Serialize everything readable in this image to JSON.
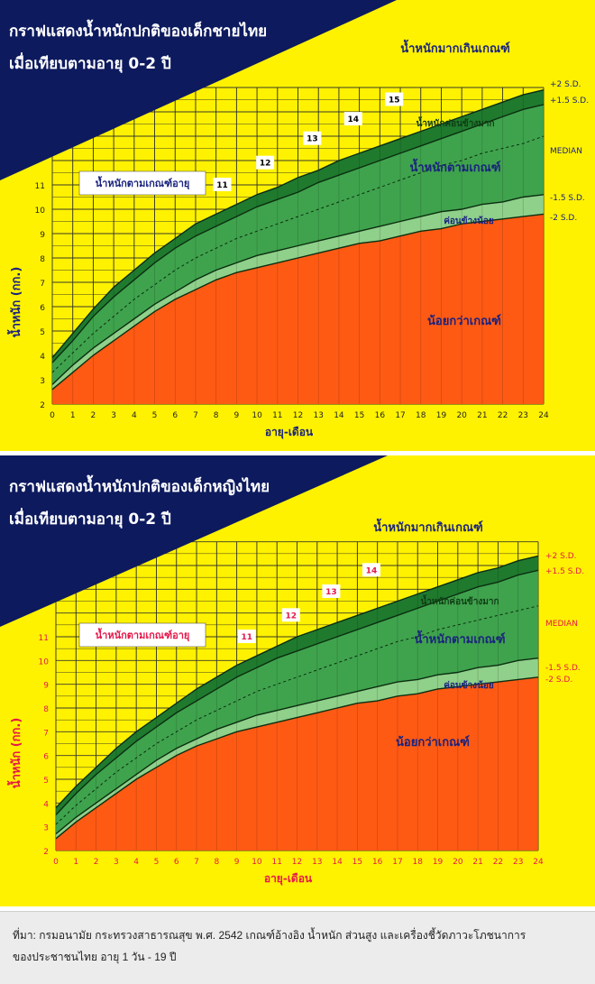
{
  "charts": [
    {
      "title_line1": "กราฟแสดงน้ำหนักปกติของเด็กชายไทย",
      "title_line2": "เมื่อเทียบตามอายุ 0-2 ปี",
      "colors": {
        "yellow": "#fff200",
        "navy": "#0d1a5e",
        "dark_green": "#1f7a2e",
        "green": "#3fa34d",
        "light_green": "#8fd08a",
        "orange": "#ff5a14",
        "tick_label": "#222222",
        "axis_title": "#1a237e",
        "marker_text": "#000000",
        "ref_label": "#1a237e"
      },
      "chart_data": {
        "type": "area",
        "xlabel": "อายุ-เดือน",
        "ylabel": "น้ำหนัก (กก.)",
        "xlim": [
          0,
          24
        ],
        "ylim": [
          2,
          15
        ],
        "grid": true,
        "x_ticks": [
          0,
          1,
          2,
          3,
          4,
          5,
          6,
          7,
          8,
          9,
          10,
          11,
          12,
          13,
          14,
          15,
          16,
          17,
          18,
          19,
          20,
          21,
          22,
          23,
          24
        ],
        "y_ticks": [
          2,
          3,
          4,
          5,
          6,
          7,
          8,
          9,
          10,
          11
        ],
        "x": [
          0,
          1,
          2,
          3,
          4,
          5,
          6,
          7,
          8,
          9,
          10,
          11,
          12,
          13,
          14,
          15,
          16,
          17,
          18,
          19,
          20,
          21,
          22,
          23,
          24
        ],
        "series": [
          {
            "name": "+2 S.D.",
            "values": [
              3.9,
              4.9,
              5.9,
              6.8,
              7.5,
              8.2,
              8.8,
              9.4,
              9.8,
              10.2,
              10.6,
              10.9,
              11.3,
              11.6,
              12.0,
              12.3,
              12.6,
              12.9,
              13.2,
              13.5,
              13.8,
              14.1,
              14.4,
              14.7,
              14.9
            ]
          },
          {
            "name": "+1.5 S.D.",
            "values": [
              3.7,
              4.6,
              5.6,
              6.4,
              7.1,
              7.8,
              8.4,
              8.9,
              9.3,
              9.7,
              10.1,
              10.4,
              10.7,
              11.1,
              11.4,
              11.7,
              12.0,
              12.3,
              12.6,
              12.9,
              13.2,
              13.5,
              13.8,
              14.1,
              14.3
            ]
          },
          {
            "name": "MEDIAN",
            "values": [
              3.3,
              4.1,
              4.9,
              5.6,
              6.3,
              6.9,
              7.5,
              8.0,
              8.4,
              8.8,
              9.1,
              9.4,
              9.7,
              10.0,
              10.3,
              10.6,
              10.9,
              11.2,
              11.5,
              11.8,
              12.0,
              12.3,
              12.5,
              12.7,
              13.0
            ]
          },
          {
            "name": "-1.5 S.D.",
            "values": [
              2.8,
              3.6,
              4.3,
              4.9,
              5.5,
              6.1,
              6.6,
              7.1,
              7.5,
              7.8,
              8.1,
              8.3,
              8.5,
              8.7,
              8.9,
              9.1,
              9.3,
              9.5,
              9.7,
              9.9,
              10.0,
              10.2,
              10.3,
              10.5,
              10.6
            ]
          },
          {
            "name": "-2 S.D.",
            "values": [
              2.6,
              3.3,
              4.0,
              4.6,
              5.2,
              5.8,
              6.3,
              6.7,
              7.1,
              7.4,
              7.6,
              7.8,
              8.0,
              8.2,
              8.4,
              8.6,
              8.7,
              8.9,
              9.1,
              9.2,
              9.4,
              9.5,
              9.6,
              9.7,
              9.8
            ]
          }
        ],
        "zones": [
          "น้ำหนักมากเกินเกณฑ์",
          "น้ำหนักค่อนข้างมาก",
          "น้ำหนักตามเกณฑ์",
          "ค่อนข้างน้อย",
          "น้อยกว่าเกณฑ์"
        ],
        "box_label": "น้ำหนักตามเกณฑ์อายุ",
        "weight_markers": [
          {
            "label": "11",
            "x": 8.3,
            "y": 11.0
          },
          {
            "label": "12",
            "x": 10.4,
            "y": 11.9
          },
          {
            "label": "13",
            "x": 12.7,
            "y": 12.9
          },
          {
            "label": "14",
            "x": 14.7,
            "y": 13.7
          },
          {
            "label": "15",
            "x": 16.7,
            "y": 14.5
          }
        ]
      }
    },
    {
      "title_line1": "กราฟแสดงน้ำหนักปกติของเด็กหญิงไทย",
      "title_line2": "เมื่อเทียบตามอายุ 0-2 ปี",
      "colors": {
        "yellow": "#fff200",
        "navy": "#0d1a5e",
        "dark_green": "#1f7a2e",
        "green": "#3fa34d",
        "light_green": "#8fd08a",
        "orange": "#ff5a14",
        "tick_label": "#e6174a",
        "axis_title": "#e6174a",
        "marker_text": "#e6174a",
        "ref_label": "#e6174a"
      },
      "chart_data": {
        "type": "area",
        "xlabel": "อายุ-เดือน",
        "ylabel": "น้ำหนัก (กก.)",
        "xlim": [
          0,
          24
        ],
        "ylim": [
          2,
          15
        ],
        "grid": true,
        "x_ticks": [
          0,
          1,
          2,
          3,
          4,
          5,
          6,
          7,
          8,
          9,
          10,
          11,
          12,
          13,
          14,
          15,
          16,
          17,
          18,
          19,
          20,
          21,
          22,
          23,
          24
        ],
        "y_ticks": [
          2,
          3,
          4,
          5,
          6,
          7,
          8,
          9,
          10,
          11
        ],
        "x": [
          0,
          1,
          2,
          3,
          4,
          5,
          6,
          7,
          8,
          9,
          10,
          11,
          12,
          13,
          14,
          15,
          16,
          17,
          18,
          19,
          20,
          21,
          22,
          23,
          24
        ],
        "series": [
          {
            "name": "+2 S.D.",
            "values": [
              3.8,
              4.7,
              5.5,
              6.3,
              7.0,
              7.6,
              8.2,
              8.8,
              9.3,
              9.8,
              10.2,
              10.6,
              11.0,
              11.3,
              11.6,
              11.9,
              12.2,
              12.5,
              12.8,
              13.1,
              13.4,
              13.7,
              13.9,
              14.2,
              14.4
            ]
          },
          {
            "name": "+1.5 S.D.",
            "values": [
              3.5,
              4.4,
              5.2,
              5.9,
              6.6,
              7.2,
              7.8,
              8.3,
              8.8,
              9.3,
              9.7,
              10.1,
              10.4,
              10.7,
              11.0,
              11.3,
              11.6,
              11.9,
              12.2,
              12.5,
              12.8,
              13.1,
              13.3,
              13.6,
              13.8
            ]
          },
          {
            "name": "MEDIAN",
            "values": [
              3.1,
              3.9,
              4.6,
              5.3,
              5.9,
              6.5,
              7.0,
              7.5,
              7.9,
              8.3,
              8.7,
              9.0,
              9.3,
              9.6,
              9.9,
              10.2,
              10.5,
              10.8,
              11.0,
              11.3,
              11.5,
              11.7,
              11.9,
              12.1,
              12.3
            ]
          },
          {
            "name": "-1.5 S.D.",
            "values": [
              2.7,
              3.4,
              4.0,
              4.6,
              5.2,
              5.8,
              6.3,
              6.7,
              7.1,
              7.4,
              7.7,
              7.9,
              8.1,
              8.3,
              8.5,
              8.7,
              8.9,
              9.1,
              9.2,
              9.4,
              9.5,
              9.7,
              9.8,
              10.0,
              10.1
            ]
          },
          {
            "name": "-2 S.D.",
            "values": [
              2.5,
              3.2,
              3.8,
              4.4,
              5.0,
              5.5,
              6.0,
              6.4,
              6.7,
              7.0,
              7.2,
              7.4,
              7.6,
              7.8,
              8.0,
              8.2,
              8.3,
              8.5,
              8.6,
              8.8,
              8.9,
              9.0,
              9.1,
              9.2,
              9.3
            ]
          }
        ],
        "zones": [
          "น้ำหนักมากเกินเกณฑ์",
          "น้ำหนักค่อนข้างมาก",
          "น้ำหนักตามเกณฑ์",
          "ค่อนข้างน้อย",
          "น้อยกว่าเกณฑ์"
        ],
        "box_label": "น้ำหนักตามเกณฑ์อายุ",
        "weight_markers": [
          {
            "label": "11",
            "x": 9.5,
            "y": 11.0
          },
          {
            "label": "12",
            "x": 11.7,
            "y": 11.9
          },
          {
            "label": "13",
            "x": 13.7,
            "y": 12.9
          },
          {
            "label": "14",
            "x": 15.7,
            "y": 13.8
          }
        ]
      }
    }
  ],
  "source_line1": "ที่มา: กรมอนามัย กระทรวงสาธารณสุข พ.ศ. 2542 เกณฑ์อ้างอิง น้ำหนัก ส่วนสูง และเครื่องชี้วัดภาวะโภชนาการ",
  "source_line2": "ของประชาชนไทย อายุ 1 วัน - 19 ปี"
}
